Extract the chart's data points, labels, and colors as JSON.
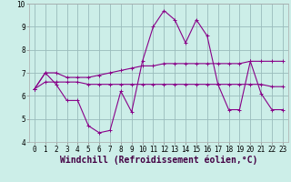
{
  "xlabel": "Windchill (Refroidissement éolien,°C)",
  "line_color": "#880088",
  "grid_color": "#99bbbb",
  "x": [
    0,
    1,
    2,
    3,
    4,
    5,
    6,
    7,
    8,
    9,
    10,
    11,
    12,
    13,
    14,
    15,
    16,
    17,
    18,
    19,
    20,
    21,
    22,
    23
  ],
  "y_main": [
    6.3,
    7.0,
    6.5,
    5.8,
    5.8,
    4.7,
    4.4,
    4.5,
    6.2,
    5.3,
    7.5,
    9.0,
    9.7,
    9.3,
    8.3,
    9.3,
    8.6,
    6.5,
    5.4,
    5.4,
    7.5,
    6.1,
    5.4,
    5.4
  ],
  "y_upper": [
    6.3,
    7.0,
    7.0,
    6.8,
    6.8,
    6.8,
    6.9,
    7.0,
    7.1,
    7.2,
    7.3,
    7.3,
    7.4,
    7.4,
    7.4,
    7.4,
    7.4,
    7.4,
    7.4,
    7.4,
    7.5,
    7.5,
    7.5,
    7.5
  ],
  "y_lower": [
    6.3,
    6.6,
    6.6,
    6.6,
    6.6,
    6.5,
    6.5,
    6.5,
    6.5,
    6.5,
    6.5,
    6.5,
    6.5,
    6.5,
    6.5,
    6.5,
    6.5,
    6.5,
    6.5,
    6.5,
    6.5,
    6.5,
    6.4,
    6.4
  ],
  "ylim": [
    4.0,
    10.0
  ],
  "xlim": [
    -0.5,
    23.5
  ],
  "yticks": [
    4,
    5,
    6,
    7,
    8,
    9,
    10
  ],
  "xticks": [
    0,
    1,
    2,
    3,
    4,
    5,
    6,
    7,
    8,
    9,
    10,
    11,
    12,
    13,
    14,
    15,
    16,
    17,
    18,
    19,
    20,
    21,
    22,
    23
  ],
  "tick_fontsize": 5.5,
  "xlabel_fontsize": 7,
  "plot_bgcolor": "#cceee8",
  "marker_size": 3,
  "linewidth": 0.8
}
